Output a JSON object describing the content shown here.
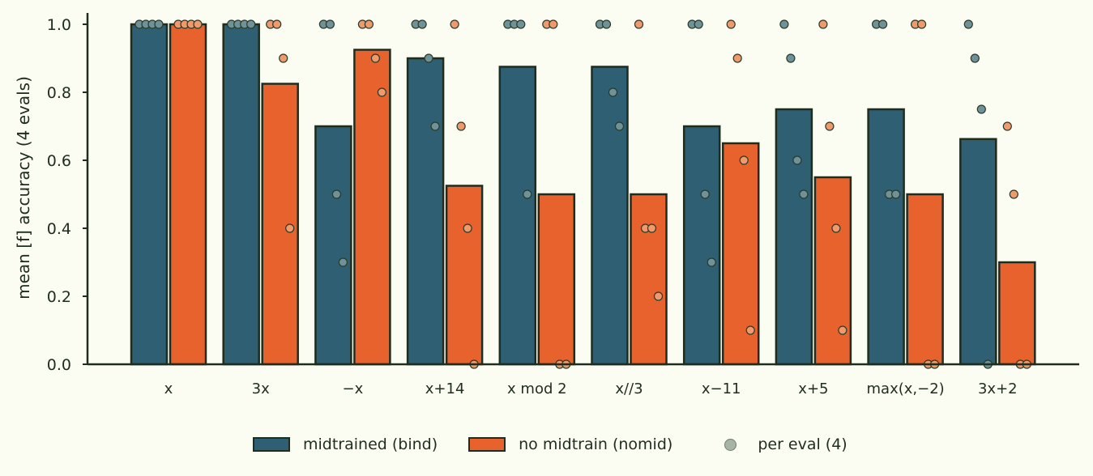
{
  "chart_data": {
    "type": "bar",
    "ylabel": "mean [f] accuracy (4 evals)",
    "xlabel": "",
    "ylim": [
      0,
      1.04
    ],
    "yticks": [
      "0.0",
      "0.2",
      "0.4",
      "0.6",
      "0.8",
      "1.0"
    ],
    "grid": false,
    "legend_position": "bottom-center",
    "categories": [
      "x",
      "3x",
      "−x",
      "x+14",
      "x mod 2",
      "x//3",
      "x−11",
      "x+5",
      "max(x,−2)",
      "3x+2"
    ],
    "series": [
      {
        "name": "midtrained (bind)",
        "color": "#2e5f73",
        "point_color": "#6f9298",
        "values": [
          1.0,
          1.0,
          0.7,
          0.9,
          0.875,
          0.875,
          0.7,
          0.75,
          0.75,
          0.6625
        ],
        "per_eval": [
          [
            1.0,
            1.0,
            1.0,
            1.0
          ],
          [
            1.0,
            1.0,
            1.0,
            1.0
          ],
          [
            1.0,
            1.0,
            0.5,
            0.3
          ],
          [
            1.0,
            1.0,
            0.9,
            0.7
          ],
          [
            1.0,
            1.0,
            1.0,
            0.5
          ],
          [
            1.0,
            1.0,
            0.8,
            0.7
          ],
          [
            1.0,
            1.0,
            0.5,
            0.3
          ],
          [
            1.0,
            0.9,
            0.6,
            0.5
          ],
          [
            1.0,
            1.0,
            0.5,
            0.5
          ],
          [
            1.0,
            0.9,
            0.75,
            0.0
          ]
        ]
      },
      {
        "name": "no midtrain (nomid)",
        "color": "#e8622e",
        "point_color": "#ef9a6c",
        "values": [
          1.0,
          0.825,
          0.925,
          0.525,
          0.5,
          0.5,
          0.65,
          0.55,
          0.5,
          0.3
        ],
        "per_eval": [
          [
            1.0,
            1.0,
            1.0,
            1.0
          ],
          [
            1.0,
            1.0,
            0.9,
            0.4
          ],
          [
            1.0,
            1.0,
            0.9,
            0.8
          ],
          [
            1.0,
            0.7,
            0.4,
            0.0
          ],
          [
            1.0,
            1.0,
            0.0,
            0.0
          ],
          [
            1.0,
            0.4,
            0.4,
            0.2
          ],
          [
            1.0,
            0.9,
            0.6,
            0.1
          ],
          [
            1.0,
            0.7,
            0.4,
            0.1
          ],
          [
            1.0,
            1.0,
            0.0,
            0.0
          ],
          [
            0.7,
            0.5,
            0.0,
            0.0
          ]
        ]
      }
    ],
    "legend": [
      {
        "label": "midtrained (bind)",
        "kind": "bar",
        "color": "#2e5f73"
      },
      {
        "label": "no midtrain (nomid)",
        "kind": "bar",
        "color": "#e8622e"
      },
      {
        "label": "per eval (4)",
        "kind": "point",
        "color": "#a8b4a6"
      }
    ]
  }
}
